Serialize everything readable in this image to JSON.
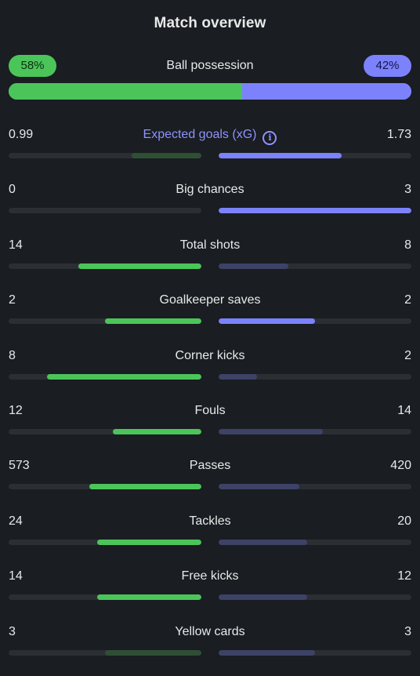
{
  "title": "Match overview",
  "colors": {
    "home_strong": "#4bc55a",
    "home_weak": "#2f4f35",
    "away_strong": "#7c82fb",
    "away_weak": "#3d4266",
    "track": "#2b2f34"
  },
  "possession": {
    "label": "Ball possession",
    "home_text": "58%",
    "away_text": "42%",
    "home": 58,
    "away": 42
  },
  "stats": [
    {
      "label": "Expected goals (xG)",
      "home": "0.99",
      "away": "1.73",
      "home_fill": 0.36,
      "away_fill": 0.64,
      "home_strong": false,
      "away_strong": true,
      "accent": true,
      "info_icon": "info-icon",
      "info_glyph": "i"
    },
    {
      "label": "Big chances",
      "home": "0",
      "away": "3",
      "home_fill": 0.0,
      "away_fill": 1.0,
      "home_strong": false,
      "away_strong": true
    },
    {
      "label": "Total shots",
      "home": "14",
      "away": "8",
      "home_fill": 0.64,
      "away_fill": 0.36,
      "home_strong": true,
      "away_strong": false
    },
    {
      "label": "Goalkeeper saves",
      "home": "2",
      "away": "2",
      "home_fill": 0.5,
      "away_fill": 0.5,
      "home_strong": true,
      "away_strong": true
    },
    {
      "label": "Corner kicks",
      "home": "8",
      "away": "2",
      "home_fill": 0.8,
      "away_fill": 0.2,
      "home_strong": true,
      "away_strong": false
    },
    {
      "label": "Fouls",
      "home": "12",
      "away": "14",
      "home_fill": 0.46,
      "away_fill": 0.54,
      "home_strong": true,
      "away_strong": false
    },
    {
      "label": "Passes",
      "home": "573",
      "away": "420",
      "home_fill": 0.58,
      "away_fill": 0.42,
      "home_strong": true,
      "away_strong": false
    },
    {
      "label": "Tackles",
      "home": "24",
      "away": "20",
      "home_fill": 0.54,
      "away_fill": 0.46,
      "home_strong": true,
      "away_strong": false
    },
    {
      "label": "Free kicks",
      "home": "14",
      "away": "12",
      "home_fill": 0.54,
      "away_fill": 0.46,
      "home_strong": true,
      "away_strong": false
    },
    {
      "label": "Yellow cards",
      "home": "3",
      "away": "3",
      "home_fill": 0.5,
      "away_fill": 0.5,
      "home_strong": false,
      "away_strong": false
    }
  ]
}
